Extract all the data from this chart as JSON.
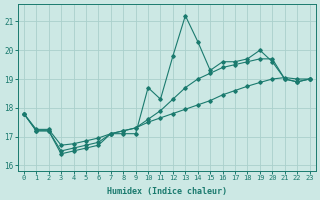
{
  "xlabel": "Humidex (Indice chaleur)",
  "bg_color": "#cce8e4",
  "grid_color": "#aad0cc",
  "line_color": "#1a7a6e",
  "xlim": [
    -0.5,
    23.5
  ],
  "ylim": [
    15.8,
    21.6
  ],
  "yticks": [
    16,
    17,
    18,
    19,
    20,
    21
  ],
  "xticks": [
    0,
    1,
    2,
    3,
    4,
    5,
    6,
    7,
    8,
    9,
    10,
    11,
    12,
    13,
    14,
    15,
    16,
    17,
    18,
    19,
    20,
    21,
    22,
    23
  ],
  "series_jagged": [
    17.8,
    17.2,
    17.2,
    16.4,
    16.5,
    16.6,
    16.7,
    17.1,
    17.1,
    17.1,
    18.7,
    18.3,
    19.8,
    21.2,
    20.3,
    19.3,
    19.6,
    19.6,
    19.7,
    20.0,
    19.6,
    19.0,
    18.9,
    19.0
  ],
  "series_smooth": [
    17.8,
    17.2,
    17.2,
    16.5,
    16.6,
    16.7,
    16.8,
    17.1,
    17.2,
    17.3,
    17.6,
    17.9,
    18.3,
    18.7,
    19.0,
    19.2,
    19.4,
    19.5,
    19.6,
    19.7,
    19.7,
    19.0,
    18.9,
    19.0
  ],
  "series_linear": [
    17.8,
    17.25,
    17.25,
    16.7,
    16.75,
    16.85,
    16.95,
    17.1,
    17.2,
    17.3,
    17.5,
    17.65,
    17.8,
    17.95,
    18.1,
    18.25,
    18.45,
    18.6,
    18.75,
    18.88,
    19.0,
    19.05,
    19.0,
    19.0
  ]
}
